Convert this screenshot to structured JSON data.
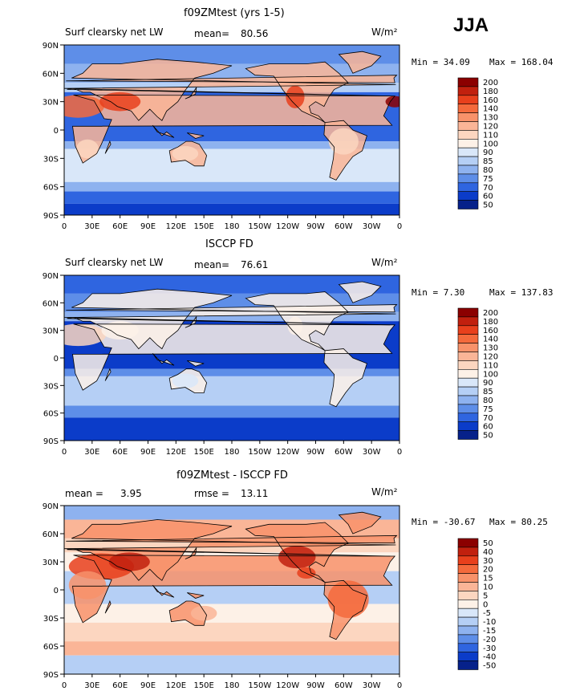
{
  "season": "JJA",
  "units": "W/m²",
  "chart_data": [
    {
      "type": "heatmap",
      "title": "f09ZMtest (yrs 1-5)",
      "left_label": "Surf clearsky net LW",
      "stat_label": "mean=",
      "stat_value": "80.56",
      "min_text": "Min =   34.09",
      "max_text": "Max = 168.04",
      "levels": [
        "200",
        "180",
        "160",
        "140",
        "130",
        "120",
        "110",
        "100",
        "90",
        "85",
        "80",
        "75",
        "70",
        "60",
        "50"
      ],
      "field": "surface clear-sky net longwave, model, global lat-lon map"
    },
    {
      "type": "heatmap",
      "title": "ISCCP FD",
      "left_label": "Surf clearsky net LW",
      "stat_label": "mean=",
      "stat_value": "76.61",
      "min_text": "Min =    7.30",
      "max_text": "Max = 137.83",
      "levels": [
        "200",
        "180",
        "160",
        "140",
        "130",
        "120",
        "110",
        "100",
        "90",
        "85",
        "80",
        "75",
        "70",
        "60",
        "50"
      ],
      "field": "surface clear-sky net longwave, observations, global lat-lon map"
    },
    {
      "type": "heatmap",
      "title": "f09ZMtest - ISCCP FD",
      "left_label": "mean =",
      "left_value": "3.95",
      "stat_label": "rmse =",
      "stat_value": "13.11",
      "min_text": "Min = -30.67",
      "max_text": "Max =  80.25",
      "levels": [
        "50",
        "40",
        "30",
        "20",
        "15",
        "10",
        "5",
        "0",
        "-5",
        "-10",
        "-15",
        "-20",
        "-30",
        "-40",
        "-50"
      ],
      "field": "difference model minus observations, global lat-lon map"
    }
  ],
  "axes": {
    "lat_ticks": [
      "90N",
      "60N",
      "30N",
      "0",
      "30S",
      "60S",
      "90S"
    ],
    "lon_ticks": [
      "0",
      "30E",
      "60E",
      "90E",
      "120E",
      "150E",
      "180",
      "150W",
      "120W",
      "90W",
      "60W",
      "30W",
      "0"
    ]
  },
  "colors": {
    "absolute": [
      "#8b0000",
      "#c1200e",
      "#e8401c",
      "#f46a3c",
      "#f8926a",
      "#fab597",
      "#fcd6c0",
      "#fdf1e7",
      "#d9e7f9",
      "#b5cff5",
      "#8eb2ef",
      "#5e8ee8",
      "#2f65e0",
      "#0b3cc9",
      "#06218a"
    ],
    "difference": [
      "#8b0000",
      "#c1200e",
      "#e8401c",
      "#f46a3c",
      "#f8926a",
      "#fab597",
      "#fcd6c0",
      "#fdf1e7",
      "#d9e7f9",
      "#b5cff5",
      "#8eb2ef",
      "#5e8ee8",
      "#2f65e0",
      "#0b3cc9",
      "#06218a"
    ]
  }
}
